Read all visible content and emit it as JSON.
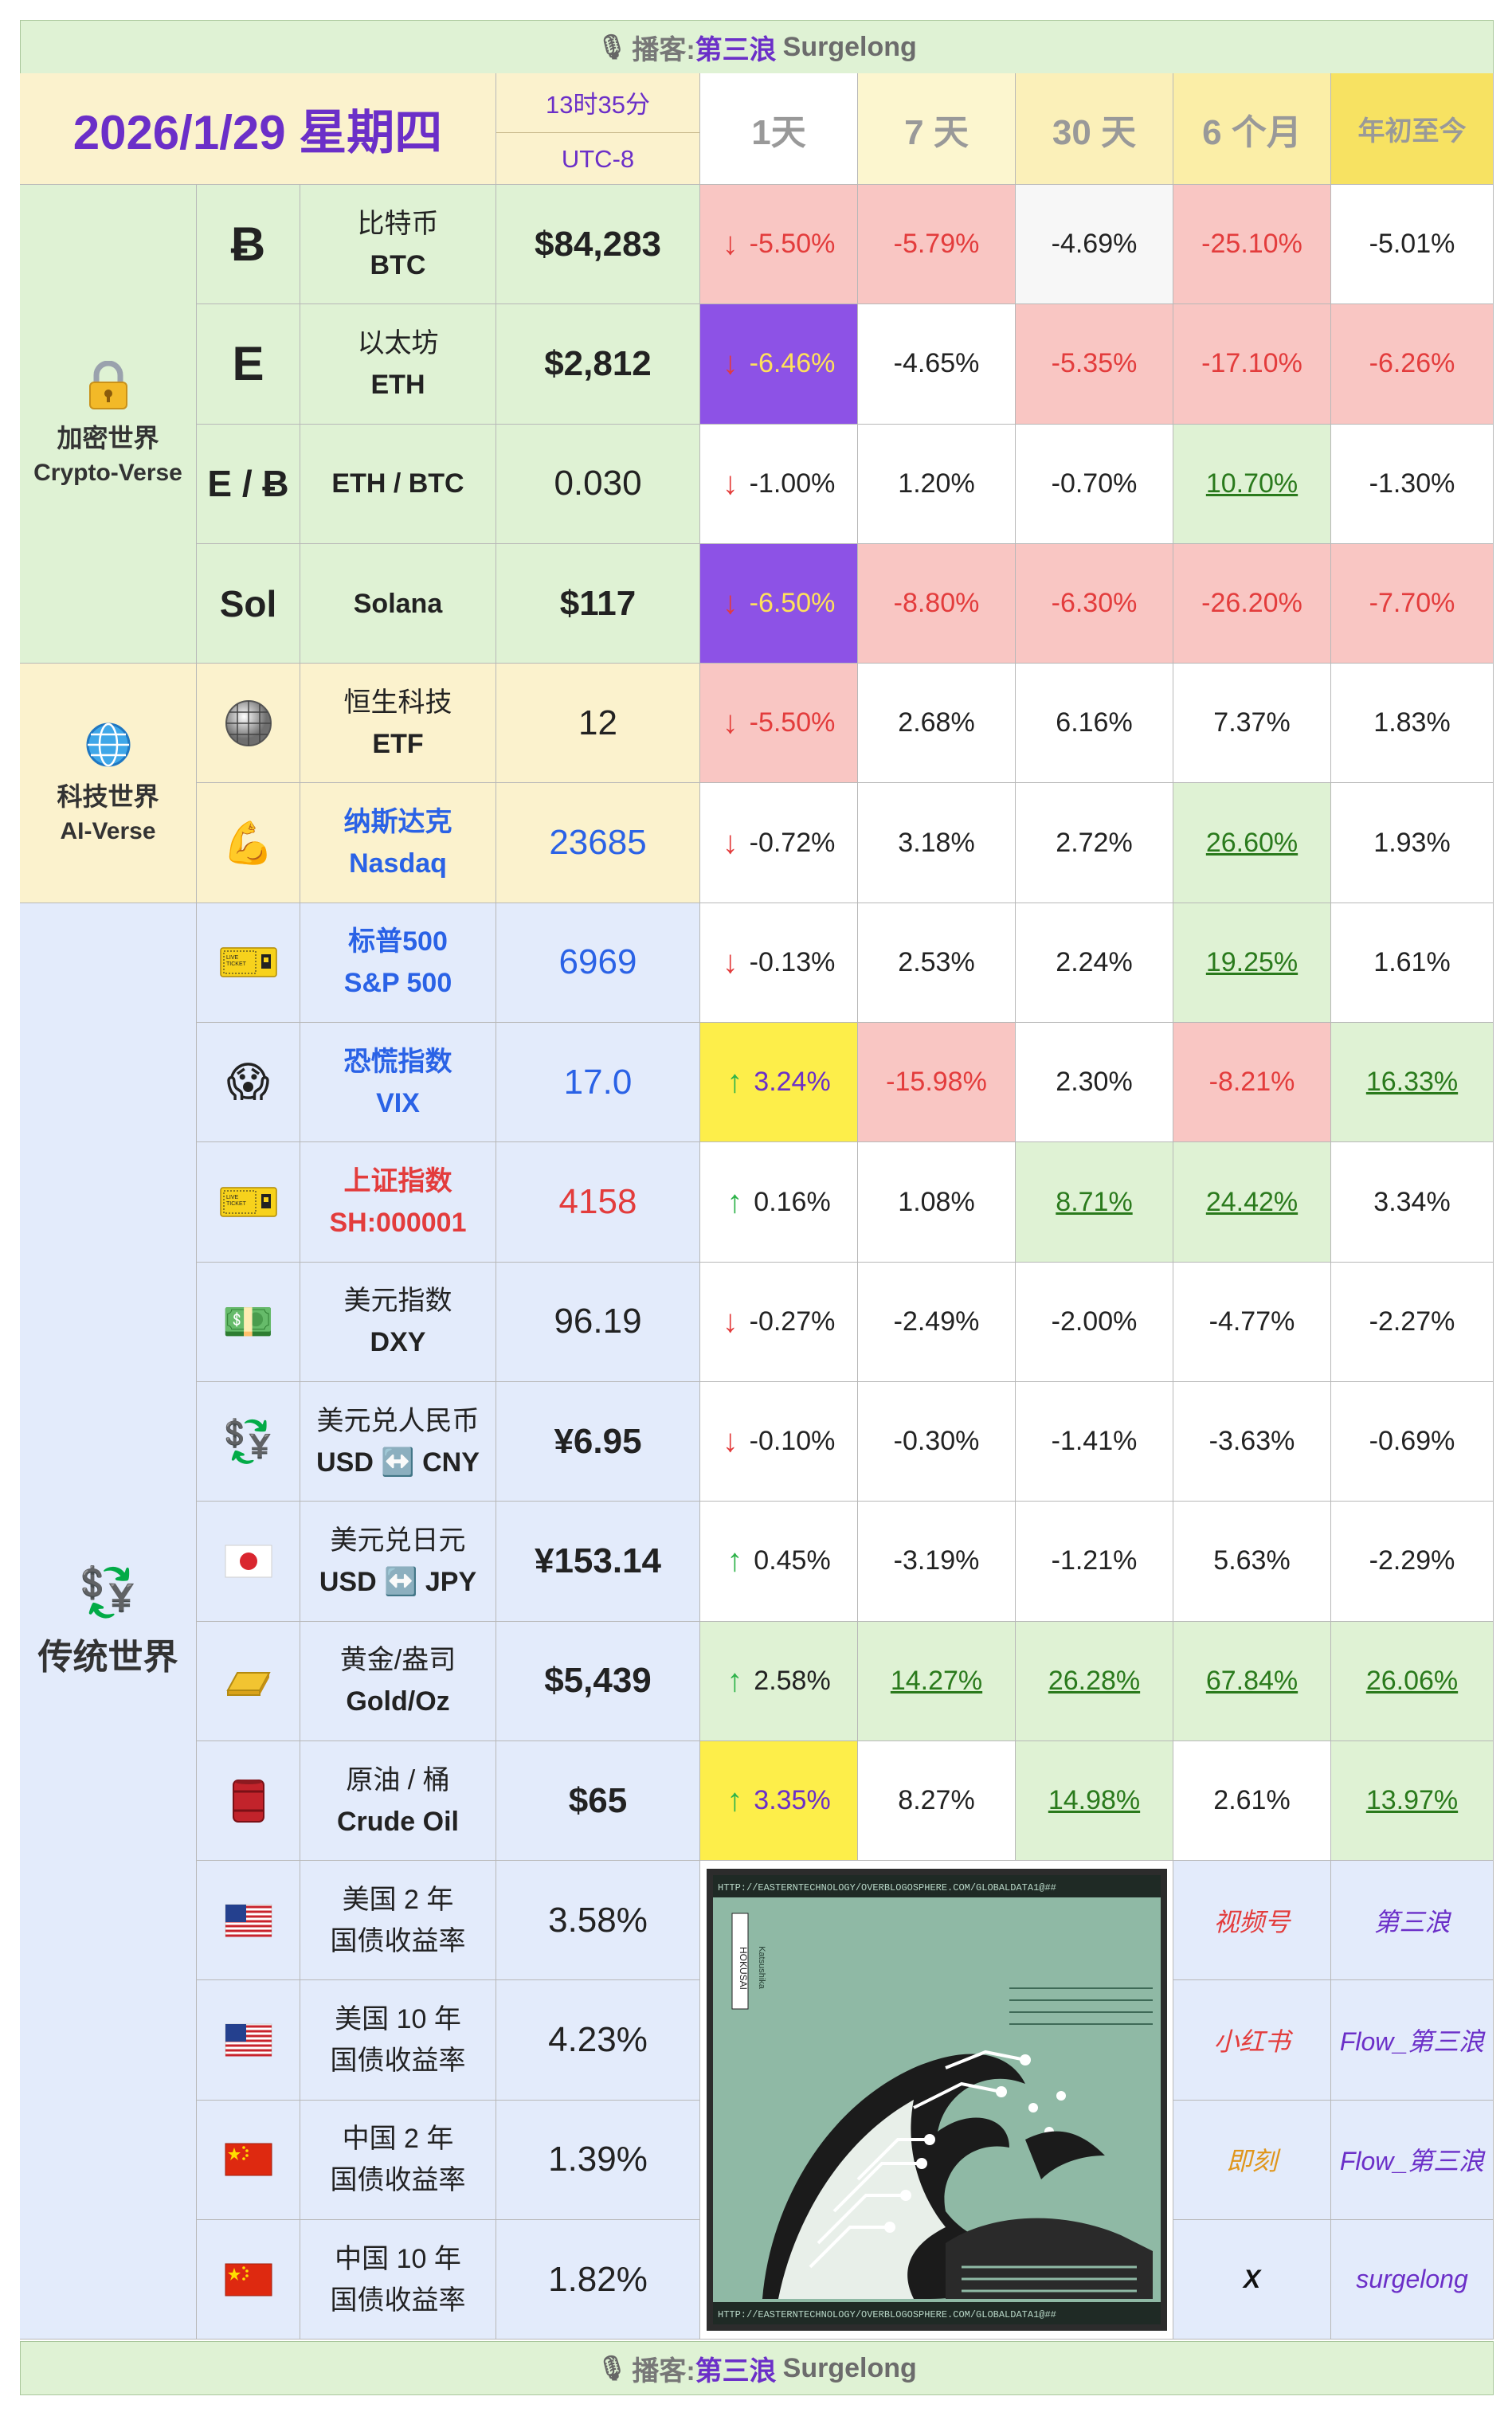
{
  "banner": {
    "prefix": "播客:",
    "name": "第三浪",
    "alias": "Surgelong"
  },
  "header": {
    "date": "2026/1/29 星期四",
    "time": "13时35分",
    "zone": "UTC-8",
    "periods": [
      "1天",
      "7 天",
      "30 天",
      "6 个月",
      "年初至今"
    ]
  },
  "categories": {
    "crypto": {
      "cn": "加密世界",
      "en": "Crypto-Verse",
      "icon": "lock-icon"
    },
    "ai": {
      "cn": "科技世界",
      "en": "AI-Verse",
      "icon": "globe-icon"
    },
    "traditional": {
      "cn": "传统世界",
      "icon": "currency-exchange-icon"
    }
  },
  "rows": [
    {
      "sym": "Ƀ",
      "cn": "比特币",
      "en": "BTC",
      "price": "$84,283",
      "d1": "-5.50%",
      "d7": "-5.79%",
      "d30": "-4.69%",
      "m6": "-25.10%",
      "ytd": "-5.01%"
    },
    {
      "sym": "E",
      "cn": "以太坊",
      "en": "ETH",
      "price": "$2,812",
      "d1": "-6.46%",
      "d7": "-4.65%",
      "d30": "-5.35%",
      "m6": "-17.10%",
      "ytd": "-6.26%"
    },
    {
      "sym": "E / Ƀ",
      "cn": "ETH / BTC",
      "en": "",
      "price": "0.030",
      "d1": "-1.00%",
      "d7": "1.20%",
      "d30": "-0.70%",
      "m6": "10.70%",
      "ytd": "-1.30%"
    },
    {
      "sym": "Sol",
      "cn": "Solana",
      "en": "",
      "price": "$117",
      "d1": "-6.50%",
      "d7": "-8.80%",
      "d30": "-6.30%",
      "m6": "-26.20%",
      "ytd": "-7.70%"
    },
    {
      "sym": "disco-ball-icon",
      "cn": "恒生科技",
      "en": "ETF",
      "price": "12",
      "d1": "-5.50%",
      "d7": "2.68%",
      "d30": "6.16%",
      "m6": "7.37%",
      "ytd": "1.83%"
    },
    {
      "sym": "flexed-bicep-icon",
      "cn": "纳斯达克",
      "en": "Nasdaq",
      "price": "23685",
      "d1": "-0.72%",
      "d7": "3.18%",
      "d30": "2.72%",
      "m6": "26.60%",
      "ytd": "1.93%"
    },
    {
      "sym": "ticket-icon",
      "cn": "标普500",
      "en": "S&P 500",
      "price": "6969",
      "d1": "-0.13%",
      "d7": "2.53%",
      "d30": "2.24%",
      "m6": "19.25%",
      "ytd": "1.61%"
    },
    {
      "sym": "scream-face-icon",
      "cn": "恐慌指数",
      "en": "VIX",
      "price": "17.0",
      "d1": "3.24%",
      "d7": "-15.98%",
      "d30": "2.30%",
      "m6": "-8.21%",
      "ytd": "16.33%"
    },
    {
      "sym": "ticket-icon",
      "cn": "上证指数",
      "en": "SH:000001",
      "price": "4158",
      "d1": "0.16%",
      "d7": "1.08%",
      "d30": "8.71%",
      "m6": "24.42%",
      "ytd": "3.34%"
    },
    {
      "sym": "dollar-bill-icon",
      "cn": "美元指数",
      "en": "DXY",
      "price": "96.19",
      "d1": "-0.27%",
      "d7": "-2.49%",
      "d30": "-2.00%",
      "m6": "-4.77%",
      "ytd": "-2.27%"
    },
    {
      "sym": "currency-exchange-icon",
      "cn": "美元兑人民币",
      "en": "USD ↔️ CNY",
      "price": "¥6.95",
      "d1": "-0.10%",
      "d7": "-0.30%",
      "d30": "-1.41%",
      "m6": "-3.63%",
      "ytd": "-0.69%"
    },
    {
      "sym": "japan-flag-icon",
      "cn": "美元兑日元",
      "en": "USD ↔️ JPY",
      "price": "¥153.14",
      "d1": "0.45%",
      "d7": "-3.19%",
      "d30": "-1.21%",
      "m6": "5.63%",
      "ytd": "-2.29%"
    },
    {
      "sym": "gold-bar-icon",
      "cn": "黄金/盎司",
      "en": "Gold/Oz",
      "price": "$5,439",
      "d1": "2.58%",
      "d7": "14.27%",
      "d30": "26.28%",
      "m6": "67.84%",
      "ytd": "26.06%"
    },
    {
      "sym": "oil-barrel-icon",
      "cn": "原油 / 桶",
      "en": "Crude Oil",
      "price": "$65",
      "d1": "3.35%",
      "d7": "8.27%",
      "d30": "14.98%",
      "m6": "2.61%",
      "ytd": "13.97%"
    },
    {
      "sym": "us-flag-icon",
      "cn": "美国 2 年",
      "en": "国债收益率",
      "price": "3.58%"
    },
    {
      "sym": "us-flag-icon",
      "cn": "美国 10 年",
      "en": "国债收益率",
      "price": "4.23%"
    },
    {
      "sym": "china-flag-icon",
      "cn": "中国 2 年",
      "en": "国债收益率",
      "price": "1.39%"
    },
    {
      "sym": "china-flag-icon",
      "cn": "中国 10 年",
      "en": "国债收益率",
      "price": "1.82%"
    }
  ],
  "art": {
    "caption_top": "HTTP://EASTERNTECHNOLOGY/OVERBLOGOSPHERE.COM/GLOBALDATA1@##",
    "caption_bottom": "HTTP://EASTERNTECHNOLOGY/OVERBLOGOSPHERE.COM/GLOBALDATA1@##",
    "label": "HOKUSAI",
    "sublabel": "Katsushika"
  },
  "social": [
    {
      "platform": "视频号",
      "handle": "第三浪"
    },
    {
      "platform": "小红书",
      "handle": "Flow_第三浪"
    },
    {
      "platform": "即刻",
      "handle": "Flow_第三浪"
    },
    {
      "platform": "X",
      "handle": "surgelong"
    }
  ],
  "colors": {
    "accent_violet": "#6b2fc8",
    "negative": "#e33c3c",
    "positive": "#2a7a1c",
    "up_arrow": "#2fb34a"
  }
}
